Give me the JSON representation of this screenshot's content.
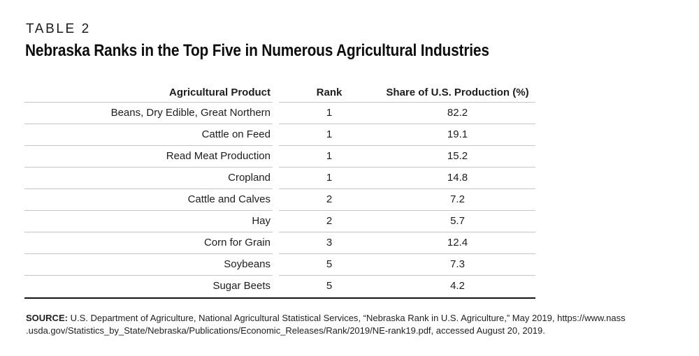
{
  "header": {
    "table_label": "TABLE 2",
    "title": "Nebraska Ranks in the Top Five in Numerous Agricultural Industries"
  },
  "table": {
    "columns": [
      "Agricultural Product",
      "Rank",
      "Share of U.S. Production (%)"
    ],
    "rows": [
      {
        "product": "Beans, Dry Edible, Great Northern",
        "rank": "1",
        "share": "82.2"
      },
      {
        "product": "Cattle on Feed",
        "rank": "1",
        "share": "19.1"
      },
      {
        "product": "Read Meat Production",
        "rank": "1",
        "share": "15.2"
      },
      {
        "product": "Cropland",
        "rank": "1",
        "share": "14.8"
      },
      {
        "product": "Cattle and Calves",
        "rank": "2",
        "share": "7.2"
      },
      {
        "product": "Hay",
        "rank": "2",
        "share": "5.7"
      },
      {
        "product": "Corn for Grain",
        "rank": "3",
        "share": "12.4"
      },
      {
        "product": "Soybeans",
        "rank": "5",
        "share": "7.3"
      },
      {
        "product": "Sugar Beets",
        "rank": "5",
        "share": "4.2"
      }
    ]
  },
  "source": {
    "label": "SOURCE:",
    "line1": "U.S. Department of Agriculture, National Agricultural Statistical Services, “Nebraska Rank in U.S. Agriculture,” May 2019, https://www.nass",
    "line2": ".usda.gov/Statistics_by_State/Nebraska/Publications/Economic_Releases/Rank/2019/NE-rank19.pdf, accessed August 20, 2019."
  },
  "colors": {
    "text": "#1d1d1d",
    "row_line": "#c6c6c6",
    "bottom_rule": "#141414"
  }
}
